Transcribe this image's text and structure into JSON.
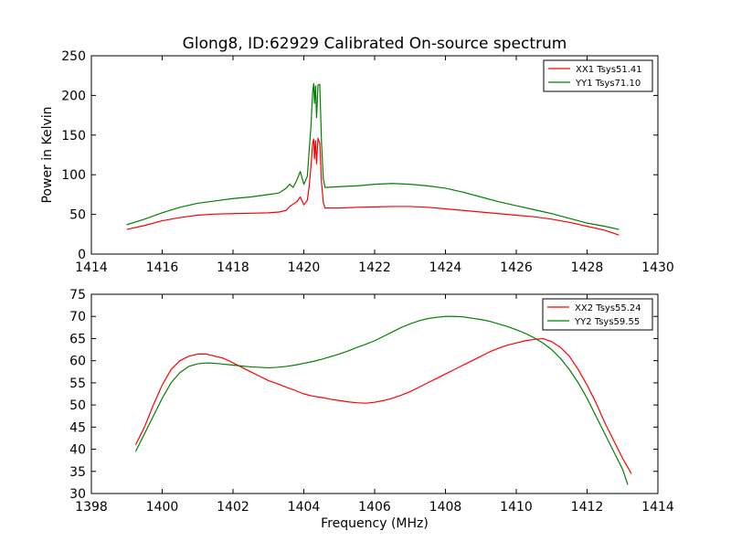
{
  "figure": {
    "title": "Glong8, ID:62929 Calibrated On-source spectrum"
  },
  "colors": {
    "xx": "#ff0000",
    "yy": "#008000"
  },
  "chart_data": [
    {
      "type": "line",
      "title": "Glong8, ID:62929 Calibrated On-source spectrum",
      "xlabel": "",
      "ylabel": "Power in Kelvin",
      "xlim": [
        1414,
        1430
      ],
      "ylim": [
        0,
        250
      ],
      "xticks": [
        1414,
        1416,
        1418,
        1420,
        1422,
        1424,
        1426,
        1428,
        1430
      ],
      "yticks": [
        0,
        50,
        100,
        150,
        200,
        250
      ],
      "grid": false,
      "legend_position": "top-right",
      "series": [
        {
          "name": "XX1 Tsys51.41",
          "color": "#ff0000",
          "points": [
            [
              1415.0,
              31
            ],
            [
              1415.5,
              36
            ],
            [
              1416.0,
              42
            ],
            [
              1416.5,
              46
            ],
            [
              1417.0,
              49
            ],
            [
              1417.5,
              50.5
            ],
            [
              1418.0,
              51
            ],
            [
              1418.5,
              51.5
            ],
            [
              1419.0,
              52
            ],
            [
              1419.3,
              53
            ],
            [
              1419.5,
              55
            ],
            [
              1419.6,
              60
            ],
            [
              1419.7,
              63
            ],
            [
              1419.8,
              66
            ],
            [
              1419.9,
              72
            ],
            [
              1420.0,
              62
            ],
            [
              1420.1,
              68
            ],
            [
              1420.15,
              85
            ],
            [
              1420.2,
              110
            ],
            [
              1420.25,
              140
            ],
            [
              1420.28,
              145
            ],
            [
              1420.3,
              120
            ],
            [
              1420.33,
              143
            ],
            [
              1420.36,
              114
            ],
            [
              1420.4,
              146
            ],
            [
              1420.45,
              140
            ],
            [
              1420.5,
              90
            ],
            [
              1420.55,
              65
            ],
            [
              1420.6,
              58
            ],
            [
              1421.0,
              58
            ],
            [
              1421.5,
              59
            ],
            [
              1422.0,
              59.5
            ],
            [
              1422.5,
              60
            ],
            [
              1423.0,
              60
            ],
            [
              1423.5,
              59
            ],
            [
              1424.0,
              57
            ],
            [
              1424.5,
              55
            ],
            [
              1425.0,
              53
            ],
            [
              1425.5,
              51
            ],
            [
              1426.0,
              49
            ],
            [
              1426.5,
              47
            ],
            [
              1427.0,
              44
            ],
            [
              1427.5,
              40
            ],
            [
              1428.0,
              35
            ],
            [
              1428.5,
              30
            ],
            [
              1428.9,
              24
            ]
          ]
        },
        {
          "name": "YY1 Tsys71.10",
          "color": "#008000",
          "points": [
            [
              1415.0,
              37
            ],
            [
              1415.5,
              44
            ],
            [
              1416.0,
              52
            ],
            [
              1416.5,
              59
            ],
            [
              1417.0,
              64
            ],
            [
              1417.5,
              67
            ],
            [
              1418.0,
              70
            ],
            [
              1418.5,
              72
            ],
            [
              1419.0,
              75
            ],
            [
              1419.3,
              77
            ],
            [
              1419.5,
              83
            ],
            [
              1419.6,
              88
            ],
            [
              1419.7,
              84
            ],
            [
              1419.8,
              93
            ],
            [
              1419.9,
              104
            ],
            [
              1420.0,
              88
            ],
            [
              1420.1,
              98
            ],
            [
              1420.15,
              130
            ],
            [
              1420.2,
              160
            ],
            [
              1420.25,
              205
            ],
            [
              1420.28,
              215
            ],
            [
              1420.3,
              190
            ],
            [
              1420.33,
              212
            ],
            [
              1420.36,
              172
            ],
            [
              1420.4,
              213
            ],
            [
              1420.45,
              214
            ],
            [
              1420.5,
              140
            ],
            [
              1420.55,
              95
            ],
            [
              1420.6,
              84
            ],
            [
              1421.0,
              85
            ],
            [
              1421.5,
              86
            ],
            [
              1422.0,
              88
            ],
            [
              1422.5,
              89
            ],
            [
              1423.0,
              88
            ],
            [
              1423.5,
              86
            ],
            [
              1424.0,
              83
            ],
            [
              1424.5,
              78
            ],
            [
              1425.0,
              72
            ],
            [
              1425.5,
              66
            ],
            [
              1426.0,
              61
            ],
            [
              1426.5,
              56
            ],
            [
              1427.0,
              51
            ],
            [
              1427.5,
              45
            ],
            [
              1428.0,
              39
            ],
            [
              1428.5,
              35
            ],
            [
              1428.9,
              31
            ]
          ]
        }
      ]
    },
    {
      "type": "line",
      "title": "",
      "xlabel": "Frequency (MHz)",
      "ylabel": "",
      "xlim": [
        1398,
        1414
      ],
      "ylim": [
        30,
        75
      ],
      "xticks": [
        1398,
        1400,
        1402,
        1404,
        1406,
        1408,
        1410,
        1412,
        1414
      ],
      "yticks": [
        30,
        35,
        40,
        45,
        50,
        55,
        60,
        65,
        70,
        75
      ],
      "grid": false,
      "legend_position": "top-right",
      "series": [
        {
          "name": "XX2 Tsys55.24",
          "color": "#ff0000",
          "points": [
            [
              1399.25,
              41
            ],
            [
              1399.5,
              45
            ],
            [
              1399.75,
              50
            ],
            [
              1400.0,
              54.5
            ],
            [
              1400.25,
              58
            ],
            [
              1400.5,
              60
            ],
            [
              1400.75,
              61
            ],
            [
              1401.0,
              61.5
            ],
            [
              1401.25,
              61.5
            ],
            [
              1401.5,
              61
            ],
            [
              1401.75,
              60.5
            ],
            [
              1402.0,
              59.5
            ],
            [
              1402.25,
              58.5
            ],
            [
              1402.5,
              57.5
            ],
            [
              1402.75,
              56.5
            ],
            [
              1403.0,
              55.5
            ],
            [
              1403.25,
              54.8
            ],
            [
              1403.5,
              54
            ],
            [
              1403.75,
              53.3
            ],
            [
              1404.0,
              52.5
            ],
            [
              1404.25,
              52
            ],
            [
              1404.5,
              51.7
            ],
            [
              1404.75,
              51.3
            ],
            [
              1405.0,
              51
            ],
            [
              1405.25,
              50.7
            ],
            [
              1405.5,
              50.5
            ],
            [
              1405.75,
              50.4
            ],
            [
              1406.0,
              50.6
            ],
            [
              1406.25,
              51
            ],
            [
              1406.5,
              51.5
            ],
            [
              1406.75,
              52.2
            ],
            [
              1407.0,
              53
            ],
            [
              1407.25,
              54
            ],
            [
              1407.5,
              55
            ],
            [
              1407.75,
              56
            ],
            [
              1408.0,
              57
            ],
            [
              1408.25,
              58
            ],
            [
              1408.5,
              59
            ],
            [
              1408.75,
              60
            ],
            [
              1409.0,
              61
            ],
            [
              1409.25,
              62
            ],
            [
              1409.5,
              62.8
            ],
            [
              1409.75,
              63.5
            ],
            [
              1410.0,
              64
            ],
            [
              1410.25,
              64.5
            ],
            [
              1410.5,
              64.8
            ],
            [
              1410.75,
              65
            ],
            [
              1411.0,
              64.3
            ],
            [
              1411.25,
              63
            ],
            [
              1411.5,
              61
            ],
            [
              1411.75,
              58
            ],
            [
              1412.0,
              54.5
            ],
            [
              1412.25,
              50.5
            ],
            [
              1412.5,
              46
            ],
            [
              1412.75,
              42
            ],
            [
              1413.0,
              38
            ],
            [
              1413.25,
              34.5
            ]
          ]
        },
        {
          "name": "YY2 Tsys59.55",
          "color": "#008000",
          "points": [
            [
              1399.25,
              39.5
            ],
            [
              1399.5,
              43.5
            ],
            [
              1399.75,
              47.5
            ],
            [
              1400.0,
              51.5
            ],
            [
              1400.25,
              55
            ],
            [
              1400.5,
              57.3
            ],
            [
              1400.75,
              58.7
            ],
            [
              1401.0,
              59.3
            ],
            [
              1401.25,
              59.5
            ],
            [
              1401.5,
              59.4
            ],
            [
              1401.75,
              59.2
            ],
            [
              1402.0,
              59
            ],
            [
              1402.25,
              58.8
            ],
            [
              1402.5,
              58.6
            ],
            [
              1402.75,
              58.5
            ],
            [
              1403.0,
              58.4
            ],
            [
              1403.25,
              58.5
            ],
            [
              1403.5,
              58.7
            ],
            [
              1403.75,
              59
            ],
            [
              1404.0,
              59.4
            ],
            [
              1404.25,
              59.8
            ],
            [
              1404.5,
              60.3
            ],
            [
              1404.75,
              60.9
            ],
            [
              1405.0,
              61.5
            ],
            [
              1405.25,
              62.2
            ],
            [
              1405.5,
              63
            ],
            [
              1405.75,
              63.7
            ],
            [
              1406.0,
              64.5
            ],
            [
              1406.25,
              65.5
            ],
            [
              1406.5,
              66.5
            ],
            [
              1406.75,
              67.5
            ],
            [
              1407.0,
              68.3
            ],
            [
              1407.25,
              69
            ],
            [
              1407.5,
              69.5
            ],
            [
              1407.75,
              69.8
            ],
            [
              1408.0,
              70
            ],
            [
              1408.25,
              70
            ],
            [
              1408.5,
              69.9
            ],
            [
              1408.75,
              69.6
            ],
            [
              1409.0,
              69.3
            ],
            [
              1409.25,
              68.9
            ],
            [
              1409.5,
              68.3
            ],
            [
              1409.75,
              67.7
            ],
            [
              1410.0,
              67
            ],
            [
              1410.25,
              66.2
            ],
            [
              1410.5,
              65.2
            ],
            [
              1410.75,
              64
            ],
            [
              1411.0,
              62.5
            ],
            [
              1411.25,
              60.5
            ],
            [
              1411.5,
              58
            ],
            [
              1411.75,
              55
            ],
            [
              1412.0,
              51.5
            ],
            [
              1412.25,
              47.5
            ],
            [
              1412.5,
              43.5
            ],
            [
              1412.75,
              39.5
            ],
            [
              1413.0,
              35.5
            ],
            [
              1413.15,
              32
            ]
          ]
        }
      ]
    }
  ]
}
